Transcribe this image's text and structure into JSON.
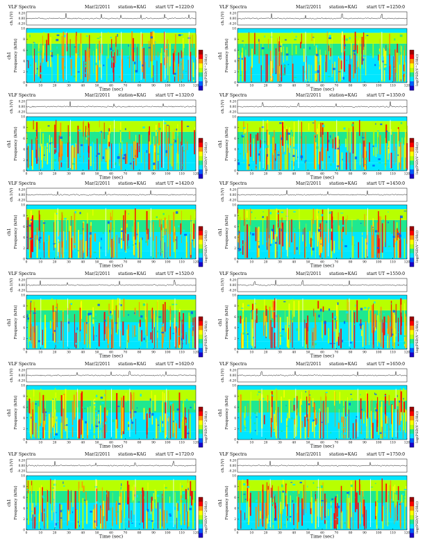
{
  "page": {
    "colors": {
      "background": "#ffffff",
      "axis": "#000000",
      "colormap": [
        "#1a00c8",
        "#005fff",
        "#00e6ff",
        "#1fe890",
        "#b8ff00",
        "#ffff00",
        "#ff9000",
        "#ff0000",
        "#a00000"
      ]
    }
  },
  "chart_data": [
    {
      "type": "heatmap",
      "title": "VLF Spectra",
      "date": "Mar/2/2011",
      "station": "station=KAG",
      "start_label": "start UT =1220:0",
      "xlabel": "Time (sec)",
      "ylabel": "Frequency (kHz)",
      "channel_label": "ch1",
      "ch_ylabel": "ch.1(V)",
      "colorbar_label": "log(PSD(V^2/Hz))",
      "xlim": [
        0,
        120
      ],
      "ylim": [
        0,
        10
      ],
      "xticks": [
        "0",
        "10",
        "20",
        "30",
        "40",
        "50",
        "60",
        "70",
        "80",
        "90",
        "100",
        "110",
        "120"
      ],
      "yticks": [
        "0",
        "2",
        "4",
        "6",
        "8",
        "10"
      ],
      "ch_yticks": [
        "0.20",
        "0.00",
        "-0.20"
      ],
      "spike_times": [
        28,
        53,
        67,
        81,
        98,
        115
      ]
    },
    {
      "type": "heatmap",
      "title": "VLF Spectra",
      "date": "Mar/2/2011",
      "station": "station=KAG",
      "start_label": "start UT =1250:0",
      "xlabel": "Time (sec)",
      "ylabel": "Frequency (kHz)",
      "channel_label": "ch1",
      "ch_ylabel": "ch.1(V)",
      "colorbar_label": "log(PSD(V^2/Hz))",
      "xlim": [
        0,
        120
      ],
      "ylim": [
        0,
        10
      ],
      "xticks": [
        "0",
        "10",
        "20",
        "30",
        "40",
        "50",
        "60",
        "70",
        "80",
        "90",
        "100",
        "110",
        "120"
      ],
      "yticks": [
        "0",
        "2",
        "4",
        "6",
        "8",
        "10"
      ],
      "ch_yticks": [
        "0.20",
        "0.00",
        "-0.20"
      ],
      "spike_times": [
        24,
        48,
        74,
        102
      ]
    },
    {
      "type": "heatmap",
      "title": "VLF Spectra",
      "date": "Mar/2/2011",
      "station": "station=KAG",
      "start_label": "start UT =1320:0",
      "xlabel": "Time (sec)",
      "ylabel": "Frequency (kHz)",
      "channel_label": "ch1",
      "ch_ylabel": "ch.1(V)",
      "colorbar_label": "log(PSD(V^2/Hz))",
      "xlim": [
        0,
        120
      ],
      "ylim": [
        0,
        10
      ],
      "xticks": [
        "0",
        "10",
        "20",
        "30",
        "40",
        "50",
        "60",
        "70",
        "80",
        "90",
        "100",
        "110",
        "120"
      ],
      "yticks": [
        "0",
        "2",
        "4",
        "6",
        "8",
        "10"
      ],
      "ch_yticks": [
        "0.20",
        "0.00",
        "-0.20"
      ],
      "spike_times": [
        31,
        62,
        97
      ]
    },
    {
      "type": "heatmap",
      "title": "VLF Spectra",
      "date": "Mar/2/2011",
      "station": "station=KAG",
      "start_label": "start UT =1350:0",
      "xlabel": "Time (sec)",
      "ylabel": "Frequency (kHz)",
      "channel_label": "ch1",
      "ch_ylabel": "ch.1(V)",
      "colorbar_label": "log(PSD(V^2/Hz))",
      "xlim": [
        0,
        120
      ],
      "ylim": [
        0,
        10
      ],
      "xticks": [
        "0",
        "10",
        "20",
        "30",
        "40",
        "50",
        "60",
        "70",
        "80",
        "90",
        "100",
        "110",
        "120"
      ],
      "yticks": [
        "0",
        "2",
        "4",
        "6",
        "8",
        "10"
      ],
      "ch_yticks": [
        "0.20",
        "0.00",
        "-0.20"
      ],
      "spike_times": [
        18,
        43,
        70,
        108
      ]
    },
    {
      "type": "heatmap",
      "title": "VLF Spectra",
      "date": "Mar/2/2011",
      "station": "station=KAG",
      "start_label": "start UT =1420:0",
      "xlabel": "Time (sec)",
      "ylabel": "Frequency (kHz)",
      "channel_label": "ch1",
      "ch_ylabel": "ch.1(V)",
      "colorbar_label": "log(PSD(V^2/Hz))",
      "xlim": [
        0,
        120
      ],
      "ylim": [
        0,
        10
      ],
      "xticks": [
        "0",
        "10",
        "20",
        "30",
        "40",
        "50",
        "60",
        "70",
        "80",
        "90",
        "100",
        "110",
        "120"
      ],
      "yticks": [
        "0",
        "2",
        "4",
        "6",
        "8",
        "10"
      ],
      "ch_yticks": [
        "0.20",
        "0.00",
        "-0.20"
      ],
      "spike_times": [
        22,
        56,
        88
      ]
    },
    {
      "type": "heatmap",
      "title": "VLF Spectra",
      "date": "Mar/2/2011",
      "station": "station=KAG",
      "start_label": "start UT =1450:0",
      "xlabel": "Time (sec)",
      "ylabel": "Frequency (kHz)",
      "channel_label": "ch1",
      "ch_ylabel": "ch.1(V)",
      "colorbar_label": "log(PSD(V^2/Hz))",
      "xlim": [
        0,
        120
      ],
      "ylim": [
        0,
        10
      ],
      "xticks": [
        "0",
        "10",
        "20",
        "30",
        "40",
        "50",
        "60",
        "70",
        "80",
        "90",
        "100",
        "110",
        "120"
      ],
      "yticks": [
        "0",
        "2",
        "4",
        "6",
        "8",
        "10"
      ],
      "ch_yticks": [
        "0.20",
        "0.00",
        "-0.20"
      ],
      "spike_times": [
        35,
        64,
        92
      ]
    },
    {
      "type": "heatmap",
      "title": "VLF Spectra",
      "date": "Mar/2/2011",
      "station": "station=KAG",
      "start_label": "start UT =1520:0",
      "xlabel": "Time (sec)",
      "ylabel": "Frequency (kHz)",
      "channel_label": "ch1",
      "ch_ylabel": "ch.1(V)",
      "colorbar_label": "log(PSD(V^2/Hz))",
      "xlim": [
        0,
        120
      ],
      "ylim": [
        0,
        10
      ],
      "xticks": [
        "0",
        "10",
        "20",
        "30",
        "40",
        "50",
        "60",
        "70",
        "80",
        "90",
        "100",
        "110",
        "120"
      ],
      "yticks": [
        "0",
        "2",
        "4",
        "6",
        "8",
        "10"
      ],
      "ch_yticks": [
        "0.20",
        "0.00",
        "-0.20"
      ],
      "spike_times": [
        10,
        29,
        66,
        105
      ]
    },
    {
      "type": "heatmap",
      "title": "VLF Spectra",
      "date": "Mar/2/2011",
      "station": "station=KAG",
      "start_label": "start UT =1550:0",
      "xlabel": "Time (sec)",
      "ylabel": "Frequency (kHz)",
      "channel_label": "ch1",
      "ch_ylabel": "ch.1(V)",
      "colorbar_label": "log(PSD(V^2/Hz))",
      "xlim": [
        0,
        120
      ],
      "ylim": [
        0,
        10
      ],
      "xticks": [
        "0",
        "10",
        "20",
        "30",
        "40",
        "50",
        "60",
        "70",
        "80",
        "90",
        "100",
        "110",
        "120"
      ],
      "yticks": [
        "0",
        "2",
        "4",
        "6",
        "8",
        "10"
      ],
      "ch_yticks": [
        "0.20",
        "0.00",
        "-0.20"
      ],
      "spike_times": [
        12,
        27,
        46,
        79
      ]
    },
    {
      "type": "heatmap",
      "title": "VLF Spectra",
      "date": "Mar/2/2011",
      "station": "station=KAG",
      "start_label": "start UT =1620:0",
      "xlabel": "Time (sec)",
      "ylabel": "Frequency (kHz)",
      "channel_label": "ch1",
      "ch_ylabel": "ch.1(V)",
      "colorbar_label": "log(PSD(V^2/Hz))",
      "xlim": [
        0,
        120
      ],
      "ylim": [
        0,
        10
      ],
      "xticks": [
        "0",
        "10",
        "20",
        "30",
        "40",
        "50",
        "60",
        "70",
        "80",
        "90",
        "100",
        "110",
        "120"
      ],
      "yticks": [
        "0",
        "2",
        "4",
        "6",
        "8",
        "10"
      ],
      "ch_yticks": [
        "0.20",
        "0.00",
        "-0.20"
      ],
      "spike_times": [
        36,
        60,
        73,
        99
      ]
    },
    {
      "type": "heatmap",
      "title": "VLF Spectra",
      "date": "Mar/2/2011",
      "station": "station=KAG",
      "start_label": "start UT =1650:0",
      "xlabel": "Time (sec)",
      "ylabel": "Frequency (kHz)",
      "channel_label": "ch1",
      "ch_ylabel": "ch.1(V)",
      "colorbar_label": "log(PSD(V^2/Hz))",
      "xlim": [
        0,
        120
      ],
      "ylim": [
        0,
        10
      ],
      "xticks": [
        "0",
        "10",
        "20",
        "30",
        "40",
        "50",
        "60",
        "70",
        "80",
        "90",
        "100",
        "110",
        "120"
      ],
      "yticks": [
        "0",
        "2",
        "4",
        "6",
        "8",
        "10"
      ],
      "ch_yticks": [
        "0.20",
        "0.00",
        "-0.20"
      ],
      "spike_times": [
        17,
        41,
        85,
        112
      ]
    },
    {
      "type": "heatmap",
      "title": "VLF Spectra",
      "date": "Mar/2/2011",
      "station": "station=KAG",
      "start_label": "start UT =1720:0",
      "xlabel": "Time (sec)",
      "ylabel": "Frequency (kHz)",
      "channel_label": "ch1",
      "ch_ylabel": "ch.1(V)",
      "colorbar_label": "log(PSD(V^2/Hz))",
      "xlim": [
        0,
        120
      ],
      "ylim": [
        0,
        10
      ],
      "xticks": [
        "0",
        "10",
        "20",
        "30",
        "40",
        "50",
        "60",
        "70",
        "80",
        "90",
        "100",
        "110",
        "120"
      ],
      "yticks": [
        "0",
        "2",
        "4",
        "6",
        "8",
        "10"
      ],
      "ch_yticks": [
        "0.20",
        "0.00",
        "-0.20"
      ],
      "spike_times": [
        20,
        49,
        77,
        104
      ]
    },
    {
      "type": "heatmap",
      "title": "VLF Spectra",
      "date": "Mar/2/2011",
      "station": "station=KAG",
      "start_label": "start UT =1750:0",
      "xlabel": "Time (sec)",
      "ylabel": "Frequency (kHz)",
      "channel_label": "ch1",
      "ch_ylabel": "ch.1(V)",
      "colorbar_label": "log(PSD(V^2/Hz))",
      "xlim": [
        0,
        120
      ],
      "ylim": [
        0,
        10
      ],
      "xticks": [
        "0",
        "10",
        "20",
        "30",
        "40",
        "50",
        "60",
        "70",
        "80",
        "90",
        "100",
        "110",
        "120"
      ],
      "yticks": [
        "0",
        "2",
        "4",
        "6",
        "8",
        "10"
      ],
      "ch_yticks": [
        "0.20",
        "0.00",
        "-0.20"
      ],
      "spike_times": [
        23,
        57,
        94
      ]
    }
  ]
}
